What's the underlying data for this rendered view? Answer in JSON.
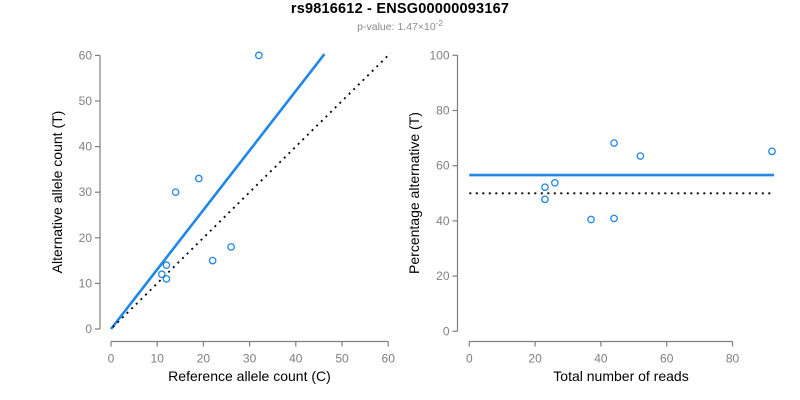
{
  "header": {
    "title": "rs9816612 - ENSG00000093167",
    "subtitle_prefix": "p-value: 1.47×10",
    "subtitle_exponent": "-2"
  },
  "colors": {
    "accent_blue": "#2086E8",
    "axis_gray": "#7F7F7F",
    "text_black": "#000000",
    "subtitle_gray": "#8A8A8A",
    "background": "#FFFFFF"
  },
  "chart_data": [
    {
      "type": "scatter",
      "panel": "allele-counts",
      "xlabel": "Reference allele count (C)",
      "ylabel": "Alternative allele count (T)",
      "xlim": [
        0,
        60
      ],
      "ylim": [
        0,
        60
      ],
      "xticks": [
        0,
        10,
        20,
        30,
        40,
        50,
        60
      ],
      "yticks": [
        0,
        10,
        20,
        30,
        40,
        50,
        60
      ],
      "grid": false,
      "legend": "none",
      "points": [
        {
          "x": 11,
          "y": 12
        },
        {
          "x": 12,
          "y": 11
        },
        {
          "x": 12,
          "y": 14
        },
        {
          "x": 14,
          "y": 30
        },
        {
          "x": 19,
          "y": 33
        },
        {
          "x": 22,
          "y": 15
        },
        {
          "x": 26,
          "y": 18
        },
        {
          "x": 32,
          "y": 60
        }
      ],
      "lines": [
        {
          "name": "fitted-allelic-ratio-line",
          "style": "solid",
          "color_key": "accent_blue",
          "x1": 0,
          "y1": 0,
          "x2": 46.2,
          "y2": 60.3
        },
        {
          "name": "identity-line",
          "style": "dotted",
          "color_key": "text_black",
          "x1": 0.4,
          "y1": 0.4,
          "x2": 60.5,
          "y2": 60.5
        }
      ]
    },
    {
      "type": "scatter",
      "panel": "percentage-alternative",
      "xlabel": "Total number of reads",
      "ylabel": "Percentage alternative (T)",
      "xlim": [
        0,
        92.6
      ],
      "ylim": [
        0,
        100
      ],
      "xticks": [
        0,
        20,
        40,
        60,
        80
      ],
      "yticks": [
        0,
        20,
        40,
        60,
        80,
        100
      ],
      "grid": false,
      "legend": "none",
      "points": [
        {
          "x": 23,
          "y": 47.8
        },
        {
          "x": 23,
          "y": 52.2
        },
        {
          "x": 26,
          "y": 53.8
        },
        {
          "x": 37,
          "y": 40.5
        },
        {
          "x": 44,
          "y": 40.9
        },
        {
          "x": 44,
          "y": 68.2
        },
        {
          "x": 52,
          "y": 63.5
        },
        {
          "x": 92,
          "y": 65.2
        }
      ],
      "lines": [
        {
          "name": "fitted-percentage-line",
          "style": "solid",
          "color_key": "accent_blue",
          "x1": 0,
          "y1": 56.6,
          "x2": 92.6,
          "y2": 56.6
        },
        {
          "name": "null-50-percent-line",
          "style": "dotted",
          "color_key": "text_black",
          "x1": 0,
          "y1": 50,
          "x2": 92.6,
          "y2": 50
        }
      ]
    }
  ]
}
